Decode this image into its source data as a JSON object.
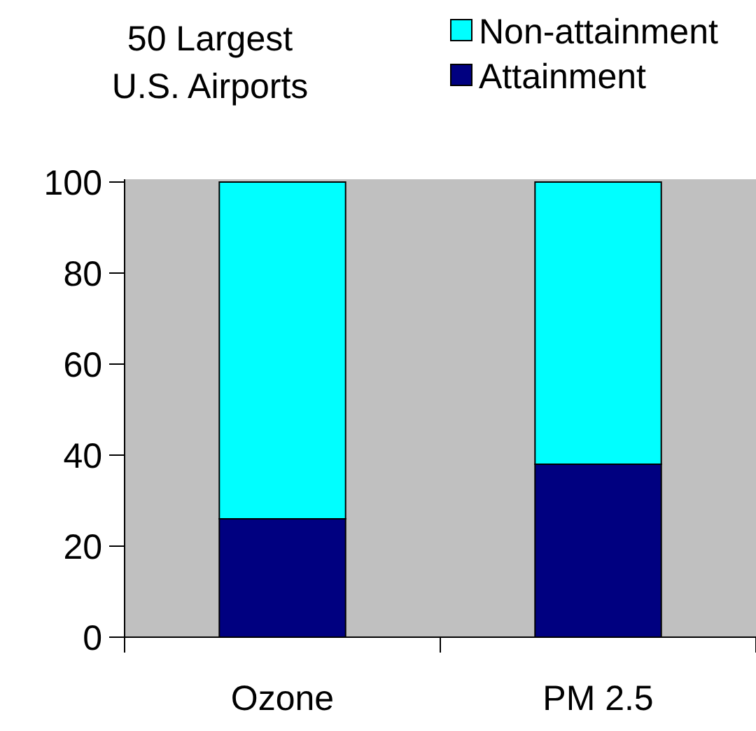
{
  "chart_data": {
    "type": "bar",
    "title": "50 Largest\nU.S. Airports",
    "categories": [
      "Ozone",
      "PM 2.5"
    ],
    "stacked": true,
    "series": [
      {
        "name": "Attainment",
        "color": "#000080",
        "values": [
          26,
          38
        ]
      },
      {
        "name": "Non-attainment",
        "color": "#00ffff",
        "values": [
          74,
          62
        ]
      }
    ],
    "ylim": [
      0,
      100
    ],
    "yticks": [
      0,
      20,
      40,
      60,
      80,
      100
    ],
    "grid": false,
    "legend": "top right"
  }
}
